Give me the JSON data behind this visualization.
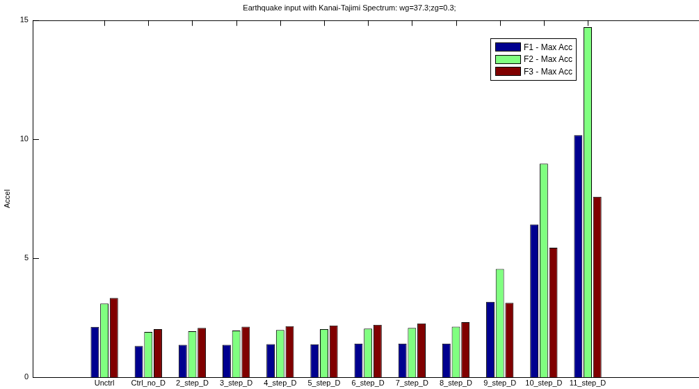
{
  "chart_data": {
    "type": "bar",
    "title": "Earthquake input with Kanai-Tajimi Spectrum: wg=37.3;zg=0.3;",
    "ylabel": "Accel",
    "categories": [
      "Unctrl",
      "Ctrl_no_D",
      "2_step_D",
      "3_step_D",
      "4_step_D",
      "5_step_D",
      "6_step_D",
      "7_step_D",
      "8_step_D",
      "9_step_D",
      "10_step_D",
      "11_step_D"
    ],
    "series": [
      {
        "name": "F1 - Max Acc",
        "color": "#00008f",
        "values": [
          2.11,
          1.31,
          1.36,
          1.36,
          1.39,
          1.38,
          1.41,
          1.41,
          1.41,
          3.17,
          6.42,
          10.17
        ]
      },
      {
        "name": "F2 - Max Acc",
        "color": "#80ff80",
        "values": [
          3.09,
          1.9,
          1.93,
          1.96,
          1.98,
          2.02,
          2.04,
          2.07,
          2.12,
          4.55,
          8.97,
          14.71
        ]
      },
      {
        "name": "F3 - Max Acc",
        "color": "#800000",
        "values": [
          3.33,
          2.02,
          2.07,
          2.12,
          2.14,
          2.17,
          2.2,
          2.26,
          2.31,
          3.12,
          5.44,
          7.58
        ]
      }
    ],
    "ylim": [
      0,
      15
    ],
    "yticks": [
      0,
      5,
      10,
      15
    ],
    "legend": "top right"
  }
}
